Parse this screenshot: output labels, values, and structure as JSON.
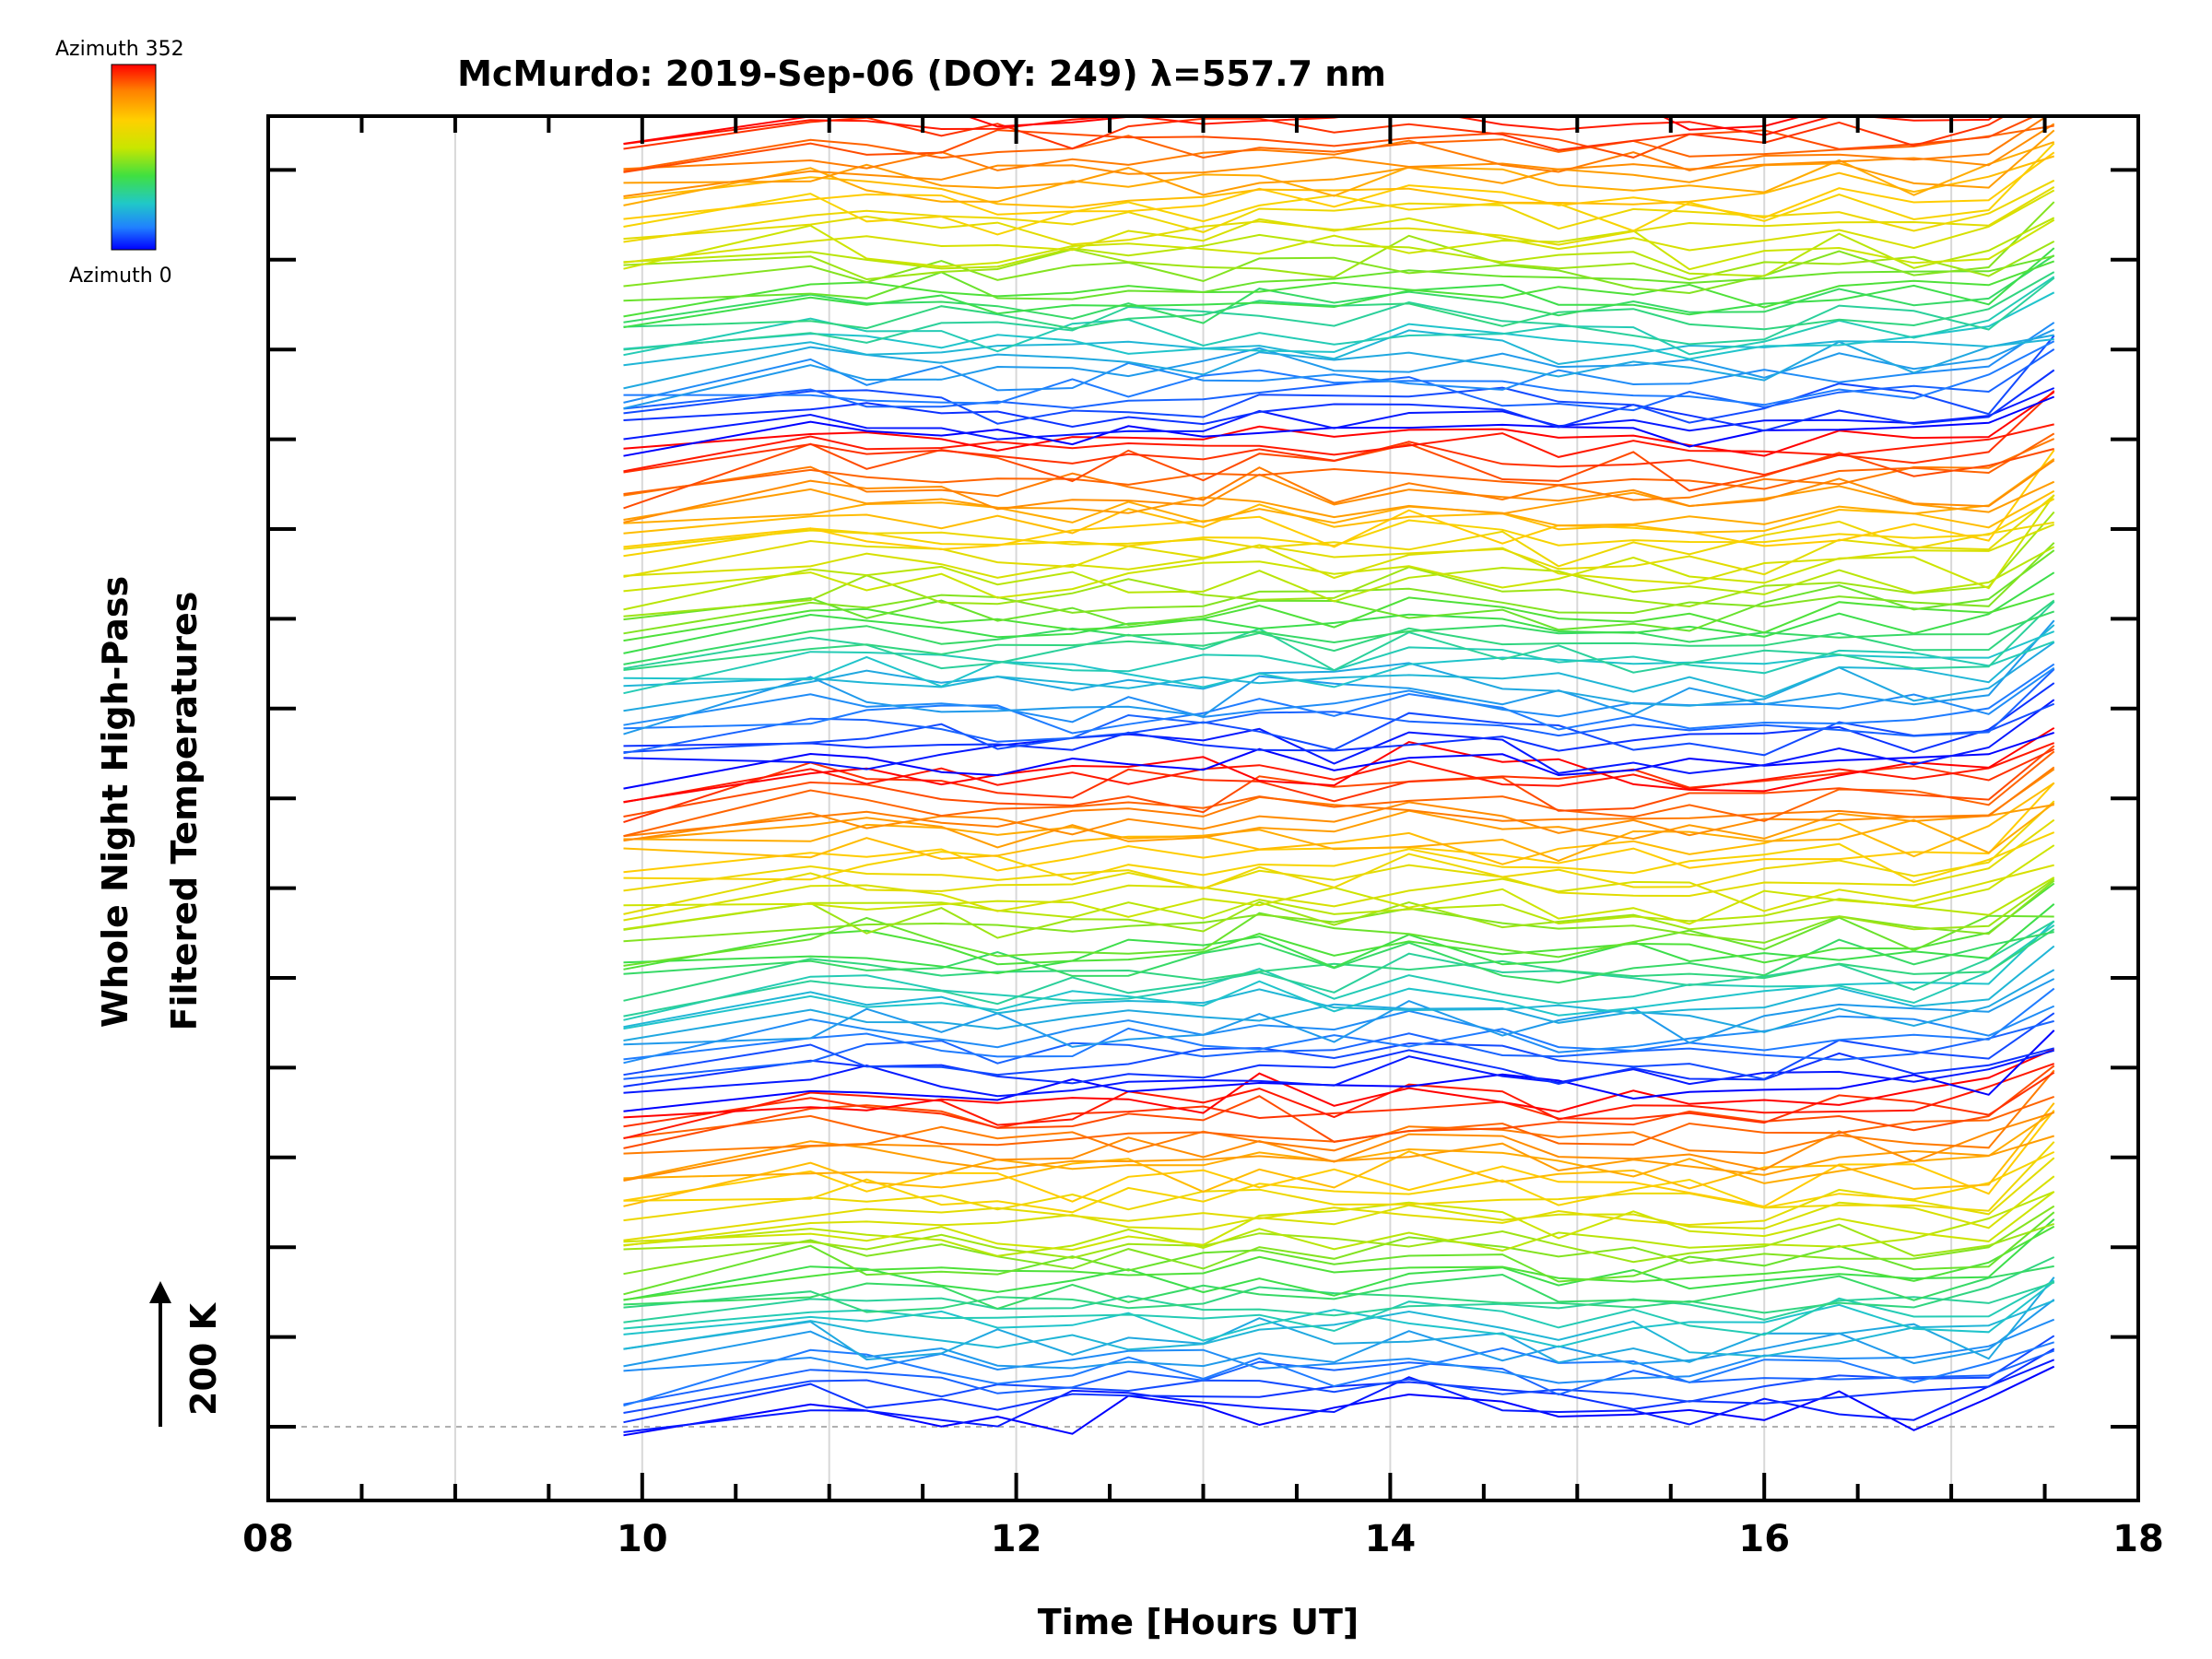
{
  "chart_data": {
    "type": "line",
    "title": "McMurdo: 2019-Sep-06 (DOY: 249) λ=557.7 nm",
    "xlabel": "Time [Hours UT]",
    "ylabel_line1": "Whole Night High-Pass",
    "ylabel_line2": "Filtered Temperatures",
    "xlim": [
      8,
      18
    ],
    "x_ticks": [
      "08",
      "10",
      "12",
      "14",
      "16",
      "18"
    ],
    "x_tick_values": [
      8,
      10,
      12,
      14,
      16,
      18
    ],
    "vertical_gridlines": [
      9,
      10,
      11,
      12,
      13,
      14,
      15,
      16,
      17
    ],
    "scale_bar_label": "200 K",
    "baseline_offset_index": 0,
    "offset_spacing_bars": 64,
    "colorbar": {
      "top_label": "Azimuth 352",
      "bottom_label": "Azimuth 0",
      "colors": [
        "#ff0000",
        "#ff8000",
        "#ffd000",
        "#c8e600",
        "#40e040",
        "#20c8c8",
        "#2080ff",
        "#0000ff"
      ]
    },
    "n_series": 148,
    "azimuth_range": [
      0,
      352
    ],
    "time_samples": [
      9.9,
      10.9,
      11.2,
      11.6,
      11.9,
      12.3,
      12.6,
      13.0,
      13.3,
      13.7,
      14.1,
      14.6,
      14.9,
      15.3,
      15.6,
      16.0,
      16.4,
      16.8,
      17.2,
      17.55
    ],
    "description_series": "Each series is one azimuth look direction of a whole-night high-pass filtered OH/O(1S) temperature, vertically offset; colours run blue (azimuth 0) to red (azimuth 352)"
  }
}
